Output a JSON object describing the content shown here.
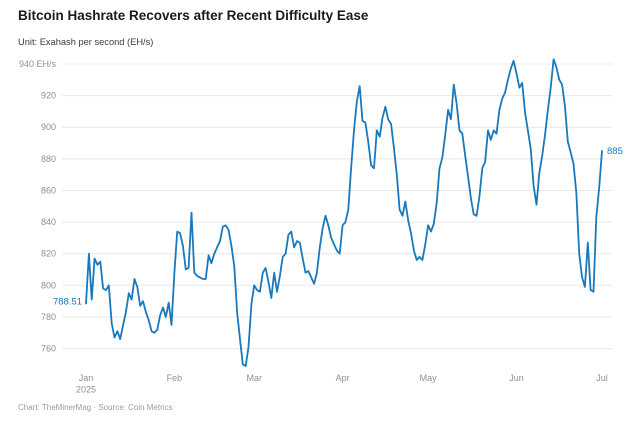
{
  "header": {
    "title": "Bitcoin Hashrate Recovers after Recent Difficulty Ease",
    "subtitle": "Unit: Exahash per second (EH/s)"
  },
  "footer": {
    "credit": "Chart: TheMinerMag · Source: Coin Metrics"
  },
  "chart_data": {
    "type": "line",
    "title": "Bitcoin Hashrate Recovers after Recent Difficulty Ease",
    "unit": "EH/s",
    "start_date": "2025-01-01",
    "frequency": "daily",
    "ylim": [
      745,
      947
    ],
    "grid": "horizontal",
    "legend": "none",
    "line_color": "#1879bd",
    "value_label_color": "#1879bd",
    "axis_label_color": "#8f8f8f",
    "grid_color": "#e8e8e8",
    "first_point_label": "788.51",
    "last_point_label": "885",
    "y_ticks": [
      {
        "value": 940,
        "label": "940 EH/s"
      },
      {
        "value": 920,
        "label": "920"
      },
      {
        "value": 900,
        "label": "900"
      },
      {
        "value": 880,
        "label": "880"
      },
      {
        "value": 860,
        "label": "860"
      },
      {
        "value": 840,
        "label": "840"
      },
      {
        "value": 820,
        "label": "820"
      },
      {
        "value": 800,
        "label": "800"
      },
      {
        "value": 780,
        "label": "780"
      },
      {
        "value": 760,
        "label": "760"
      }
    ],
    "x_ticks": [
      {
        "day": 0,
        "label": "Jan",
        "sublabel": "2025"
      },
      {
        "day": 31,
        "label": "Feb"
      },
      {
        "day": 59,
        "label": "Mar"
      },
      {
        "day": 90,
        "label": "Apr"
      },
      {
        "day": 120,
        "label": "May"
      },
      {
        "day": 151,
        "label": "Jun"
      },
      {
        "day": 181,
        "label": "Jul"
      }
    ],
    "series": [
      {
        "name": "Bitcoin hashrate (EH/s)",
        "color": "#1879bd",
        "values": [
          788.51,
          820,
          791,
          817,
          813,
          815,
          798,
          797,
          800,
          776,
          767,
          771,
          766,
          775,
          783,
          795,
          791,
          804,
          799,
          787,
          790,
          783,
          778,
          771,
          770,
          772,
          781,
          786,
          780,
          789,
          775,
          808,
          834,
          833,
          825,
          810,
          811,
          846,
          808,
          806,
          805,
          804,
          804,
          819,
          814,
          820,
          824,
          828,
          837,
          838,
          835,
          825,
          812,
          783,
          766,
          750,
          749,
          761,
          788,
          800,
          797,
          796,
          808,
          811,
          802,
          792,
          808,
          796,
          806,
          818,
          820,
          832,
          834,
          824,
          828,
          827,
          817,
          808,
          809,
          805,
          801,
          808,
          824,
          836,
          844,
          838,
          830,
          826,
          822,
          820,
          838,
          840,
          848,
          874,
          898,
          916,
          926,
          904,
          903,
          891,
          876,
          874,
          898,
          894,
          906,
          913,
          905,
          902,
          887,
          870,
          848,
          844,
          853,
          841,
          833,
          822,
          816,
          818,
          816,
          826,
          838,
          834,
          839,
          852,
          874,
          881,
          895,
          911,
          905,
          927,
          915,
          898,
          896,
          882,
          869,
          855,
          845,
          844,
          856,
          874,
          878,
          898,
          892,
          898,
          896,
          911,
          918,
          922,
          930,
          937,
          942,
          934,
          925,
          928,
          909,
          898,
          886,
          863,
          851,
          871,
          882,
          895,
          911,
          925,
          943,
          938,
          930,
          927,
          913,
          891,
          884,
          877,
          858,
          820,
          805,
          799,
          827,
          797,
          796,
          843,
          862,
          885
        ]
      }
    ]
  }
}
